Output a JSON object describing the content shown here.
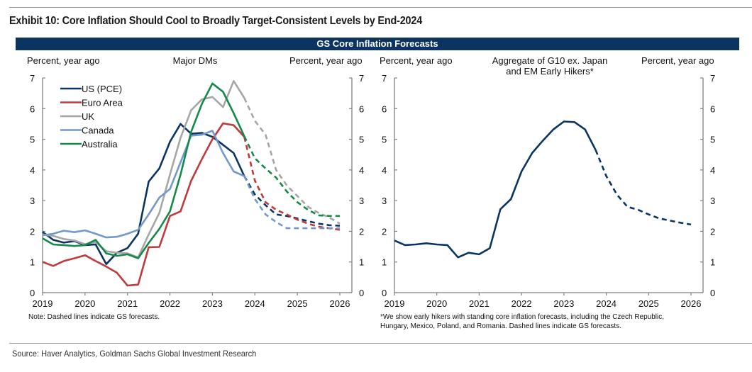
{
  "exhibit_title": "Exhibit 10: Core Inflation Should Cool to Broadly Target-Consistent Levels by End-2024",
  "banner_title": "GS Core Inflation Forecasts",
  "source": "Source: Haver Analytics, Goldman Sachs Global Investment Research",
  "chart_data": [
    {
      "type": "line",
      "title": "Major DMs",
      "ylabel_left": "Percent, year ago",
      "ylabel_right": "Percent, year ago",
      "xlabel": "",
      "ylim": [
        0,
        7
      ],
      "xlim": [
        2019,
        2026.25
      ],
      "yticks": [
        "0",
        "1",
        "2",
        "3",
        "4",
        "5",
        "6",
        "7"
      ],
      "xticks": [
        "2019",
        "2020",
        "2021",
        "2022",
        "2023",
        "2024",
        "2025",
        "2026"
      ],
      "grid": false,
      "legend": "top-left",
      "note": "Note: Dashed lines indicate GS forecasts.",
      "forecast_start": 2023.75,
      "series": [
        {
          "name": "US (PCE)",
          "color": "#0b3560",
          "x": [
            2019,
            2019.25,
            2019.5,
            2019.75,
            2020,
            2020.25,
            2020.5,
            2020.75,
            2021,
            2021.25,
            2021.5,
            2021.75,
            2022,
            2022.25,
            2022.5,
            2022.75,
            2023,
            2023.25,
            2023.5,
            2023.75,
            2024,
            2024.25,
            2024.5,
            2024.75,
            2025,
            2025.25,
            2025.5,
            2025.75,
            2026
          ],
          "y": [
            1.98,
            1.72,
            1.63,
            1.68,
            1.55,
            1.57,
            0.93,
            1.3,
            1.45,
            1.92,
            3.62,
            4.05,
            4.92,
            5.5,
            5.18,
            5.21,
            5.08,
            4.82,
            4.55,
            3.8,
            3.2,
            2.85,
            2.55,
            2.5,
            2.42,
            2.33,
            2.25,
            2.2,
            2.18
          ]
        },
        {
          "name": "Euro Area",
          "color": "#c0393b",
          "x": [
            2019,
            2019.25,
            2019.5,
            2019.75,
            2020,
            2020.25,
            2020.5,
            2020.75,
            2021,
            2021.25,
            2021.5,
            2021.75,
            2022,
            2022.25,
            2022.5,
            2022.75,
            2023,
            2023.25,
            2023.5,
            2023.75,
            2024,
            2024.25,
            2024.5,
            2024.75,
            2025,
            2025.25,
            2025.5,
            2025.75,
            2026
          ],
          "y": [
            1.0,
            0.87,
            1.03,
            1.12,
            1.22,
            1.03,
            0.85,
            0.65,
            0.23,
            0.26,
            1.48,
            1.49,
            2.5,
            2.65,
            3.65,
            4.35,
            5.0,
            5.52,
            5.46,
            5.08,
            3.65,
            2.95,
            2.7,
            2.55,
            2.38,
            2.25,
            2.15,
            2.1,
            2.05
          ]
        },
        {
          "name": "UK",
          "color": "#a6a6a6",
          "x": [
            2019,
            2019.25,
            2019.5,
            2019.75,
            2020,
            2020.25,
            2020.5,
            2020.75,
            2021,
            2021.25,
            2021.5,
            2021.75,
            2022,
            2022.25,
            2022.5,
            2022.75,
            2023,
            2023.25,
            2023.5,
            2023.75,
            2024,
            2024.25,
            2024.5,
            2024.75,
            2025,
            2025.25,
            2025.5,
            2025.75,
            2026
          ],
          "y": [
            1.9,
            1.85,
            1.75,
            1.7,
            1.58,
            1.65,
            1.35,
            1.3,
            1.28,
            1.15,
            1.9,
            2.6,
            3.85,
            5.05,
            5.95,
            6.3,
            6.38,
            6.05,
            6.9,
            6.35,
            5.6,
            5.15,
            4.0,
            3.5,
            3.15,
            2.8,
            2.6,
            2.45,
            2.25
          ]
        },
        {
          "name": "Canada",
          "color": "#7199cc",
          "x": [
            2019,
            2019.25,
            2019.5,
            2019.75,
            2020,
            2020.25,
            2020.5,
            2020.75,
            2021,
            2021.25,
            2021.5,
            2021.75,
            2022,
            2022.25,
            2022.5,
            2022.75,
            2023,
            2023.25,
            2023.5,
            2023.75,
            2024,
            2024.25,
            2024.5,
            2024.75,
            2025,
            2025.25,
            2025.5,
            2025.75,
            2026
          ],
          "y": [
            1.87,
            1.92,
            2.02,
            1.97,
            2.03,
            1.92,
            1.8,
            1.82,
            1.92,
            2.05,
            2.55,
            3.1,
            3.38,
            4.25,
            5.12,
            5.15,
            5.28,
            4.55,
            3.95,
            3.8,
            3.05,
            2.55,
            2.3,
            2.1,
            2.1,
            2.1,
            2.1,
            2.1,
            2.1
          ]
        },
        {
          "name": "Australia",
          "color": "#14894a",
          "x": [
            2019,
            2019.25,
            2019.5,
            2019.75,
            2020,
            2020.25,
            2020.5,
            2020.75,
            2021,
            2021.25,
            2021.5,
            2021.75,
            2022,
            2022.25,
            2022.5,
            2022.75,
            2023,
            2023.25,
            2023.5,
            2023.75,
            2024,
            2024.25,
            2024.5,
            2024.75,
            2025,
            2025.25,
            2025.5,
            2025.75,
            2026
          ],
          "y": [
            1.77,
            1.57,
            1.55,
            1.52,
            1.55,
            1.72,
            1.28,
            1.2,
            1.25,
            1.12,
            1.62,
            2.08,
            2.65,
            3.85,
            5.25,
            6.15,
            6.82,
            6.55,
            5.85,
            5.1,
            4.38,
            4.05,
            3.75,
            3.3,
            2.95,
            2.7,
            2.52,
            2.5,
            2.5
          ]
        }
      ]
    },
    {
      "type": "line",
      "title": "Aggregate of G10 ex. Japan and EM Early Hikers*",
      "title_lines": [
        "Aggregate of G10 ex. Japan",
        "and EM Early Hikers*"
      ],
      "ylabel_left": "Percent, year ago",
      "ylabel_right": "Percent, year ago",
      "xlabel": "",
      "ylim": [
        0,
        7
      ],
      "xlim": [
        2019,
        2026.25
      ],
      "yticks": [
        "0",
        "1",
        "2",
        "3",
        "4",
        "5",
        "6",
        "7"
      ],
      "xticks": [
        "2019",
        "2020",
        "2021",
        "2022",
        "2023",
        "2024",
        "2025",
        "2026"
      ],
      "grid": false,
      "legend": "none",
      "note_lines": [
        "*We show early hikers with standing core inflation forecasts, including the Czech Republic,",
        "Hungary, Mexico, Poland, and Romania. Dashed lines indicate GS forecasts."
      ],
      "forecast_start": 2023.75,
      "series": [
        {
          "name": "Aggregate",
          "color": "#0b3560",
          "x": [
            2019,
            2019.25,
            2019.5,
            2019.75,
            2020,
            2020.25,
            2020.5,
            2020.75,
            2021,
            2021.25,
            2021.5,
            2021.75,
            2022,
            2022.25,
            2022.5,
            2022.75,
            2023,
            2023.25,
            2023.5,
            2023.75,
            2024,
            2024.25,
            2024.5,
            2024.75,
            2025,
            2025.25,
            2025.5,
            2025.75,
            2026
          ],
          "y": [
            1.7,
            1.55,
            1.57,
            1.61,
            1.57,
            1.55,
            1.15,
            1.3,
            1.25,
            1.45,
            2.72,
            3.05,
            3.95,
            4.55,
            4.95,
            5.32,
            5.58,
            5.56,
            5.32,
            4.65,
            3.8,
            3.2,
            2.8,
            2.7,
            2.55,
            2.42,
            2.35,
            2.28,
            2.22
          ]
        }
      ]
    }
  ]
}
